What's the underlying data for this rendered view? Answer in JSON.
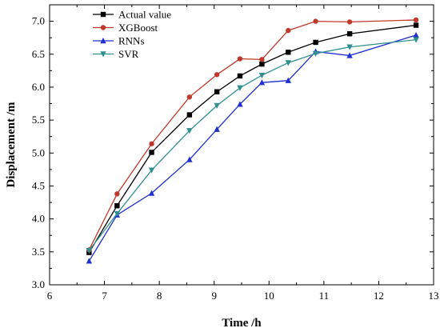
{
  "chart_data": {
    "type": "line",
    "xlabel": "Time /h",
    "ylabel": "Displacement /m",
    "xlim": [
      6,
      13
    ],
    "ylim": [
      3.0,
      7.25
    ],
    "xticks": [
      "6",
      "7",
      "8",
      "9",
      "10",
      "11",
      "12",
      "13"
    ],
    "yticks": [
      "3.0",
      "3.5",
      "4.0",
      "4.5",
      "5.0",
      "5.5",
      "6.0",
      "6.5",
      "7.0"
    ],
    "grid": false,
    "legend_position": "top-left",
    "series": [
      {
        "name": "Actual value",
        "color": "#000000",
        "marker": "square",
        "x": [
          6.72,
          7.23,
          7.86,
          8.55,
          9.05,
          9.47,
          9.87,
          10.35,
          10.85,
          11.47,
          12.68
        ],
        "y": [
          3.49,
          4.2,
          5.01,
          5.58,
          5.93,
          6.17,
          6.35,
          6.53,
          6.68,
          6.81,
          6.94
        ]
      },
      {
        "name": "XGBoost",
        "color": "#c0392b",
        "marker": "circle",
        "x": [
          6.72,
          7.23,
          7.86,
          8.55,
          9.05,
          9.47,
          9.87,
          10.35,
          10.85,
          11.47,
          12.68
        ],
        "y": [
          3.53,
          4.38,
          5.14,
          5.85,
          6.19,
          6.43,
          6.42,
          6.86,
          7.0,
          6.99,
          7.02
        ]
      },
      {
        "name": "RNNs",
        "color": "#1f2fd1",
        "marker": "triangle-up",
        "x": [
          6.72,
          7.23,
          7.86,
          8.55,
          9.05,
          9.47,
          9.87,
          10.35,
          10.85,
          11.47,
          12.68
        ],
        "y": [
          3.36,
          4.06,
          4.39,
          4.9,
          5.36,
          5.74,
          6.07,
          6.1,
          6.54,
          6.48,
          6.79
        ]
      },
      {
        "name": "SVR",
        "color": "#2f8f8f",
        "marker": "triangle-down",
        "x": [
          6.72,
          7.23,
          7.86,
          8.55,
          9.05,
          9.47,
          9.87,
          10.35,
          10.85,
          11.47,
          12.68
        ],
        "y": [
          3.52,
          4.08,
          4.74,
          5.34,
          5.72,
          5.99,
          6.18,
          6.37,
          6.51,
          6.61,
          6.72
        ]
      }
    ]
  }
}
